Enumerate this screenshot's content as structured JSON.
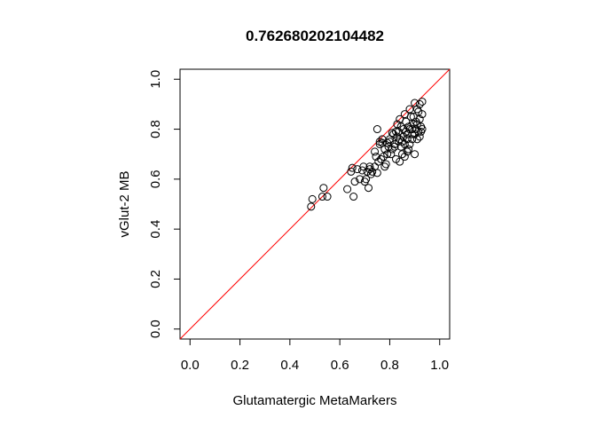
{
  "chart_data": {
    "type": "scatter",
    "title": "0.762680202104482",
    "xlabel": "Glutamatergic MetaMarkers",
    "ylabel": "vGlut-2 MB",
    "xlim": [
      -0.04,
      1.04
    ],
    "ylim": [
      -0.04,
      1.04
    ],
    "xticks": [
      "0.0",
      "0.2",
      "0.4",
      "0.6",
      "0.8",
      "1.0"
    ],
    "yticks": [
      "0.0",
      "0.2",
      "0.4",
      "0.6",
      "0.8",
      "1.0"
    ],
    "grid": false,
    "legend": "none",
    "reference_line": {
      "intercept": 0,
      "slope": 1,
      "color": "#ff0000"
    },
    "point_color": "#000000",
    "points": [
      [
        0.485,
        0.49
      ],
      [
        0.49,
        0.52
      ],
      [
        0.53,
        0.53
      ],
      [
        0.535,
        0.565
      ],
      [
        0.55,
        0.53
      ],
      [
        0.63,
        0.56
      ],
      [
        0.645,
        0.63
      ],
      [
        0.65,
        0.645
      ],
      [
        0.655,
        0.53
      ],
      [
        0.66,
        0.59
      ],
      [
        0.67,
        0.64
      ],
      [
        0.68,
        0.6
      ],
      [
        0.69,
        0.635
      ],
      [
        0.695,
        0.65
      ],
      [
        0.7,
        0.59
      ],
      [
        0.705,
        0.6
      ],
      [
        0.71,
        0.63
      ],
      [
        0.715,
        0.565
      ],
      [
        0.72,
        0.65
      ],
      [
        0.725,
        0.62
      ],
      [
        0.73,
        0.63
      ],
      [
        0.74,
        0.71
      ],
      [
        0.745,
        0.69
      ],
      [
        0.75,
        0.625
      ],
      [
        0.755,
        0.67
      ],
      [
        0.76,
        0.75
      ],
      [
        0.765,
        0.68
      ],
      [
        0.77,
        0.745
      ],
      [
        0.775,
        0.69
      ],
      [
        0.78,
        0.65
      ],
      [
        0.785,
        0.66
      ],
      [
        0.79,
        0.7
      ],
      [
        0.795,
        0.73
      ],
      [
        0.8,
        0.75
      ],
      [
        0.805,
        0.7
      ],
      [
        0.81,
        0.72
      ],
      [
        0.815,
        0.78
      ],
      [
        0.82,
        0.74
      ],
      [
        0.825,
        0.68
      ],
      [
        0.83,
        0.77
      ],
      [
        0.835,
        0.79
      ],
      [
        0.84,
        0.67
      ],
      [
        0.845,
        0.81
      ],
      [
        0.85,
        0.75
      ],
      [
        0.855,
        0.8
      ],
      [
        0.86,
        0.74
      ],
      [
        0.865,
        0.83
      ],
      [
        0.87,
        0.78
      ],
      [
        0.875,
        0.72
      ],
      [
        0.88,
        0.8
      ],
      [
        0.885,
        0.85
      ],
      [
        0.89,
        0.76
      ],
      [
        0.895,
        0.82
      ],
      [
        0.9,
        0.78
      ],
      [
        0.905,
        0.8
      ],
      [
        0.91,
        0.88
      ],
      [
        0.915,
        0.79
      ],
      [
        0.92,
        0.9
      ],
      [
        0.925,
        0.81
      ],
      [
        0.93,
        0.8
      ],
      [
        0.75,
        0.8
      ],
      [
        0.77,
        0.76
      ],
      [
        0.79,
        0.745
      ],
      [
        0.81,
        0.785
      ],
      [
        0.83,
        0.82
      ],
      [
        0.84,
        0.76
      ],
      [
        0.85,
        0.7
      ],
      [
        0.86,
        0.69
      ],
      [
        0.87,
        0.71
      ],
      [
        0.88,
        0.74
      ],
      [
        0.89,
        0.78
      ],
      [
        0.9,
        0.7
      ],
      [
        0.91,
        0.76
      ],
      [
        0.92,
        0.84
      ],
      [
        0.93,
        0.86
      ],
      [
        0.82,
        0.73
      ],
      [
        0.84,
        0.84
      ],
      [
        0.86,
        0.86
      ],
      [
        0.88,
        0.88
      ],
      [
        0.9,
        0.905
      ],
      [
        0.92,
        0.77
      ],
      [
        0.93,
        0.91
      ],
      [
        0.91,
        0.82
      ],
      [
        0.89,
        0.8
      ],
      [
        0.87,
        0.76
      ],
      [
        0.865,
        0.79
      ],
      [
        0.855,
        0.77
      ],
      [
        0.845,
        0.73
      ],
      [
        0.835,
        0.75
      ],
      [
        0.825,
        0.79
      ],
      [
        0.8,
        0.76
      ],
      [
        0.78,
        0.72
      ],
      [
        0.76,
        0.74
      ],
      [
        0.74,
        0.65
      ],
      [
        0.72,
        0.64
      ],
      [
        0.905,
        0.83
      ],
      [
        0.915,
        0.87
      ],
      [
        0.925,
        0.79
      ],
      [
        0.895,
        0.85
      ],
      [
        0.875,
        0.81
      ]
    ]
  }
}
